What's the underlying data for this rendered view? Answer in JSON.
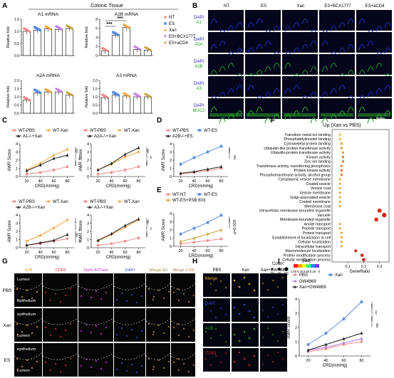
{
  "panel_letters": [
    "A",
    "B",
    "C",
    "D",
    "E",
    "F",
    "G",
    "H",
    "I"
  ],
  "colors": {
    "NT": "#f08a8a",
    "ES": "#5b8fe0",
    "Xan": "#f2a33a",
    "BCX": "#c77ae0",
    "aCD4": "#c9a23a",
    "PBS": "#f08a8a",
    "KO": "#222222",
    "GW": "#b27ad8",
    "PSB": "#c9a23a",
    "dapi": "#1a1aa8",
    "a1": "#1a7a1a",
    "muc2": "#2ba42b",
    "cd63": "#d22222",
    "merge": "#d6a020"
  },
  "panelA": {
    "tissue_title": "Colonic Tissue",
    "ylabel": "Relative fold",
    "legend": [
      "NT",
      "ES",
      "Xan",
      "ES+BCX1777",
      "ES+aCD4"
    ],
    "subplots": [
      {
        "title": "A1 mRNA",
        "ylim": [
          0,
          1.5
        ],
        "yticks": [
          "0.0",
          "0.5",
          "1.0",
          "1.5"
        ],
        "values": [
          1.0,
          1.05,
          1.1,
          1.08,
          1.12
        ]
      },
      {
        "title": "A2B mRNA",
        "ylim": [
          0,
          8
        ],
        "yticks": [
          "0",
          "2",
          "4",
          "6",
          "8"
        ],
        "values": [
          1.0,
          4.5,
          6.2,
          1.3,
          1.2
        ],
        "sig": [
          "***",
          "***"
        ]
      },
      {
        "title": "A2A mRNA",
        "ylim": [
          0,
          2.0
        ],
        "yticks": [
          "0.0",
          "0.5",
          "1.0",
          "1.5",
          "2.0"
        ],
        "values": [
          0.8,
          1.25,
          1.3,
          1.3,
          1.1
        ]
      },
      {
        "title": "A3 mRNA",
        "ylim": [
          0,
          2.0
        ],
        "yticks": [
          "0.0",
          "0.5",
          "1.0",
          "1.5",
          "2.0"
        ],
        "values": [
          0.95,
          1.1,
          1.05,
          1.0,
          1.0
        ]
      }
    ]
  },
  "panelB": {
    "columns": [
      "NT",
      "ES",
      "Xan",
      "ES+BCX1777",
      "ES+aCD4"
    ],
    "rows": [
      {
        "dapi": "DAPI",
        "marker": "A1"
      },
      {
        "dapi": "DAPI",
        "marker": "A2A"
      },
      {
        "dapi": "DAPI",
        "marker": "A2B"
      },
      {
        "dapi": "DAPI",
        "marker": "A3"
      },
      {
        "dapi": "DAPI",
        "marker": "MUC2"
      }
    ]
  },
  "awr": {
    "ylabel": "AWR Score",
    "xlabel": "CRD(mmHg)",
    "x": [
      20,
      40,
      60,
      80
    ],
    "ylim": [
      0,
      4
    ],
    "yticks": [
      "0",
      "1",
      "2",
      "3",
      "4"
    ]
  },
  "panelC": [
    {
      "legend": [
        "WT-PBS",
        "WT-Xan",
        "A1-/-+Xan"
      ],
      "series": [
        [
          0.3,
          0.5,
          0.8,
          1.2
        ],
        [
          0.8,
          1.6,
          2.6,
          3.3
        ],
        [
          0.7,
          1.4,
          2.2,
          2.6
        ]
      ],
      "sig": [
        "ns",
        "***",
        "***"
      ]
    },
    {
      "legend": [
        "WT-PBS",
        "WT-Xan",
        "A2A-/-+Xan"
      ],
      "series": [
        [
          0.3,
          0.5,
          0.8,
          1.2
        ],
        [
          0.8,
          1.5,
          2.4,
          3.0
        ],
        [
          0.8,
          1.6,
          2.7,
          3.5
        ]
      ],
      "sig": [
        "ns",
        "**",
        "***"
      ]
    },
    {
      "legend": [
        "WT-PBS",
        "WT-Xan",
        "A2B-/-+Xan"
      ],
      "series": [
        [
          0.3,
          0.5,
          0.8,
          1.1
        ],
        [
          0.8,
          1.5,
          2.4,
          3.4
        ],
        [
          0.3,
          0.6,
          0.9,
          1.6
        ]
      ],
      "sig": [
        "*",
        "**",
        "ns",
        "**"
      ]
    },
    {
      "legend": [
        "WT-PBS",
        "WT-Xan",
        "A3-/-+Xan"
      ],
      "series": [
        [
          0.3,
          0.5,
          0.8,
          1.2
        ],
        [
          0.8,
          1.6,
          2.5,
          3.4
        ],
        [
          0.9,
          1.7,
          2.7,
          3.5
        ]
      ],
      "sig": [
        "ns",
        "**",
        "***"
      ]
    }
  ],
  "panelD": {
    "legend": [
      "WT-PBS",
      "WT-ES",
      "A2B-/-+ES"
    ],
    "series": [
      [
        0.3,
        0.5,
        0.7,
        1.0
      ],
      [
        1.5,
        2.3,
        3.0,
        3.7
      ],
      [
        0.4,
        0.6,
        0.9,
        1.2
      ]
    ],
    "sig": [
      "***",
      "ns"
    ]
  },
  "panelE": {
    "legend": [
      "WT-NT",
      "WT-ES",
      "WT-ES+PSB 603"
    ],
    "series": [
      [
        0.3,
        0.5,
        0.7,
        0.9
      ],
      [
        1.5,
        2.2,
        2.9,
        3.8
      ],
      [
        0.6,
        1.0,
        1.5,
        2.0
      ]
    ],
    "sig": [
      "***",
      "p=0.018"
    ]
  },
  "panelF": {
    "title": "Up (Xan vs PBS)",
    "terms": [
      "Transition metal ion binding",
      "Phosphatidylinositol binding",
      "Cytoskeletal protein binding",
      "Ubiquitin-like protein transferase activity",
      "Ubiquitin-protein transferase activity",
      "Kinase activity",
      "Zinc ion binding",
      "Transferase activity, transferring phosphorus",
      "Protein kinase activity",
      "Phosphotransferase activity, alcohol group",
      "Cytoplasmic vesicle membrane",
      "Coated vesicle",
      "Vesicle coat",
      "Vesicle membrane",
      "Golgi-associated vesicle",
      "Coated membrane",
      "Membrane coat",
      "Intracellular membrane-bounded organelle",
      "Vacuole",
      "Membrane-bounded organelle",
      "Amide transport",
      "Peptide transport",
      "Protein transport",
      "Establishment of localization in cell",
      "Cellular localization",
      "Intracellular transport",
      "Macromolecule localization",
      "Protein modification process",
      "Cellular modification process"
    ],
    "gene_ratio": [
      0.05,
      0.05,
      0.06,
      0.06,
      0.07,
      0.07,
      0.07,
      0.06,
      0.06,
      0.06,
      0.05,
      0.05,
      0.05,
      0.05,
      0.05,
      0.05,
      0.05,
      0.3,
      0.33,
      0.28,
      0.05,
      0.05,
      0.06,
      0.06,
      0.06,
      0.06,
      0.15,
      0.19,
      0.2
    ],
    "dot_colors": [
      "#e8b020",
      "#e8b020",
      "#e8a020",
      "#e89020",
      "#e89020",
      "#e07020",
      "#e07020",
      "#e07020",
      "#e07020",
      "#e07020",
      "#e8a030",
      "#e8a030",
      "#e8a030",
      "#e8a030",
      "#e8a030",
      "#e8a030",
      "#e8a030",
      "#d83020",
      "#d82020",
      "#d83020",
      "#e8a030",
      "#e8a030",
      "#e8a030",
      "#e8a030",
      "#e8a030",
      "#e8a030",
      "#d82020",
      "#d82020",
      "#d82020"
    ],
    "xlabel": "GeneRatio",
    "xticks": [
      "0.1",
      "0.2",
      "0.3"
    ],
    "count_label": "Count",
    "count_values": [
      "20",
      "40",
      "60"
    ],
    "padj_label": "padj",
    "padj_ticks": [
      "1.00",
      "0.75",
      "0.50",
      "0.25",
      "0"
    ]
  },
  "panelG": {
    "columns": [
      "A2B",
      "CD63",
      "Na/K ATPase",
      "DAPI",
      "Merge 2D",
      "Merge 2.5D"
    ],
    "rows": [
      {
        "label": "PBS",
        "texts": [
          "Lumen",
          "epithelium"
        ]
      },
      {
        "label": "Xan",
        "texts": [
          "epithelium",
          "Lumen"
        ]
      },
      {
        "label": "ES",
        "texts": [
          "epithelium",
          "Lumen"
        ]
      }
    ]
  },
  "panelH": {
    "columns": [
      "PBS",
      "Xan",
      "Xan+GW4869"
    ],
    "rows": [
      "Merge",
      "DAPI",
      "A2B",
      "CD63"
    ]
  },
  "panelI": {
    "legend": [
      "PBS",
      "Xan",
      "GW4869",
      "Xan+GW4869"
    ],
    "series": [
      [
        0.3,
        0.5,
        0.8,
        1.0
      ],
      [
        0.8,
        1.6,
        2.6,
        3.8
      ],
      [
        0.4,
        0.6,
        0.9,
        1.2
      ],
      [
        0.4,
        0.8,
        1.2,
        1.6
      ]
    ],
    "sig": [
      "***",
      "***",
      "***",
      "ns"
    ]
  },
  "chart_data": [
    {
      "type": "bar",
      "title": "A1 mRNA",
      "categories": [
        "NT",
        "ES",
        "Xan",
        "ES+BCX1777",
        "ES+aCD4"
      ],
      "values": [
        1.0,
        1.05,
        1.1,
        1.08,
        1.12
      ],
      "ylabel": "Relative fold",
      "ylim": [
        0,
        1.5
      ]
    },
    {
      "type": "bar",
      "title": "A2B mRNA",
      "categories": [
        "NT",
        "ES",
        "Xan",
        "ES+BCX1777",
        "ES+aCD4"
      ],
      "values": [
        1.0,
        4.5,
        6.2,
        1.3,
        1.2
      ],
      "ylabel": "Relative fold",
      "ylim": [
        0,
        8
      ]
    },
    {
      "type": "bar",
      "title": "A2A mRNA",
      "categories": [
        "NT",
        "ES",
        "Xan",
        "ES+BCX1777",
        "ES+aCD4"
      ],
      "values": [
        0.8,
        1.25,
        1.3,
        1.3,
        1.1
      ],
      "ylabel": "Relative fold",
      "ylim": [
        0,
        2
      ]
    },
    {
      "type": "bar",
      "title": "A3 mRNA",
      "categories": [
        "NT",
        "ES",
        "Xan",
        "ES+BCX1777",
        "ES+aCD4"
      ],
      "values": [
        0.95,
        1.1,
        1.05,
        1.0,
        1.0
      ],
      "ylabel": "Relative fold",
      "ylim": [
        0,
        2
      ]
    },
    {
      "type": "line",
      "x": [
        20,
        40,
        60,
        80
      ],
      "xlabel": "CRD(mmHg)",
      "ylabel": "AWR Score",
      "ylim": [
        0,
        4
      ],
      "series": [
        {
          "name": "WT-PBS",
          "values": [
            0.3,
            0.5,
            0.8,
            1.2
          ]
        },
        {
          "name": "WT-Xan",
          "values": [
            0.8,
            1.6,
            2.6,
            3.3
          ]
        },
        {
          "name": "A1-/-+Xan",
          "values": [
            0.7,
            1.4,
            2.2,
            2.6
          ]
        }
      ]
    },
    {
      "type": "line",
      "x": [
        20,
        40,
        60,
        80
      ],
      "xlabel": "CRD(mmHg)",
      "ylabel": "AWR Score",
      "ylim": [
        0,
        4
      ],
      "series": [
        {
          "name": "WT-PBS",
          "values": [
            0.3,
            0.5,
            0.8,
            1.2
          ]
        },
        {
          "name": "WT-Xan",
          "values": [
            0.8,
            1.5,
            2.4,
            3.0
          ]
        },
        {
          "name": "A2A-/-+Xan",
          "values": [
            0.8,
            1.6,
            2.7,
            3.5
          ]
        }
      ]
    },
    {
      "type": "line",
      "x": [
        20,
        40,
        60,
        80
      ],
      "xlabel": "CRD(mmHg)",
      "ylabel": "AWR Score",
      "ylim": [
        0,
        4
      ],
      "series": [
        {
          "name": "WT-PBS",
          "values": [
            0.3,
            0.5,
            0.8,
            1.1
          ]
        },
        {
          "name": "WT-Xan",
          "values": [
            0.8,
            1.5,
            2.4,
            3.4
          ]
        },
        {
          "name": "A2B-/-+Xan",
          "values": [
            0.3,
            0.6,
            0.9,
            1.6
          ]
        }
      ]
    },
    {
      "type": "line",
      "x": [
        20,
        40,
        60,
        80
      ],
      "xlabel": "CRD(mmHg)",
      "ylabel": "AWR Score",
      "ylim": [
        0,
        4
      ],
      "series": [
        {
          "name": "WT-PBS",
          "values": [
            0.3,
            0.5,
            0.8,
            1.2
          ]
        },
        {
          "name": "WT-Xan",
          "values": [
            0.8,
            1.6,
            2.5,
            3.4
          ]
        },
        {
          "name": "A3-/-+Xan",
          "values": [
            0.9,
            1.7,
            2.7,
            3.5
          ]
        }
      ]
    },
    {
      "type": "line",
      "x": [
        20,
        40,
        60,
        80
      ],
      "xlabel": "CRD(mmHg)",
      "ylabel": "AWR Score",
      "ylim": [
        0,
        4
      ],
      "series": [
        {
          "name": "WT-PBS",
          "values": [
            0.3,
            0.5,
            0.7,
            1.0
          ]
        },
        {
          "name": "WT-ES",
          "values": [
            1.5,
            2.3,
            3.0,
            3.7
          ]
        },
        {
          "name": "A2B-/-+ES",
          "values": [
            0.4,
            0.6,
            0.9,
            1.2
          ]
        }
      ]
    },
    {
      "type": "line",
      "x": [
        20,
        40,
        60,
        80
      ],
      "xlabel": "CRD(mmHg)",
      "ylabel": "AWR Score",
      "ylim": [
        0,
        4
      ],
      "series": [
        {
          "name": "WT-NT",
          "values": [
            0.3,
            0.5,
            0.7,
            0.9
          ]
        },
        {
          "name": "WT-ES",
          "values": [
            1.5,
            2.2,
            2.9,
            3.8
          ]
        },
        {
          "name": "WT-ES+PSB 603",
          "values": [
            0.6,
            1.0,
            1.5,
            2.0
          ]
        }
      ]
    },
    {
      "type": "scatter",
      "title": "Up (Xan vs PBS)",
      "xlabel": "GeneRatio"
    },
    {
      "type": "line",
      "x": [
        20,
        40,
        60,
        80
      ],
      "xlabel": "CRD(mmHg)",
      "ylabel": "AWR Score",
      "ylim": [
        0,
        4
      ],
      "series": [
        {
          "name": "PBS",
          "values": [
            0.3,
            0.5,
            0.8,
            1.0
          ]
        },
        {
          "name": "Xan",
          "values": [
            0.8,
            1.6,
            2.6,
            3.8
          ]
        },
        {
          "name": "GW4869",
          "values": [
            0.4,
            0.6,
            0.9,
            1.2
          ]
        },
        {
          "name": "Xan+GW4869",
          "values": [
            0.4,
            0.8,
            1.2,
            1.6
          ]
        }
      ]
    }
  ]
}
